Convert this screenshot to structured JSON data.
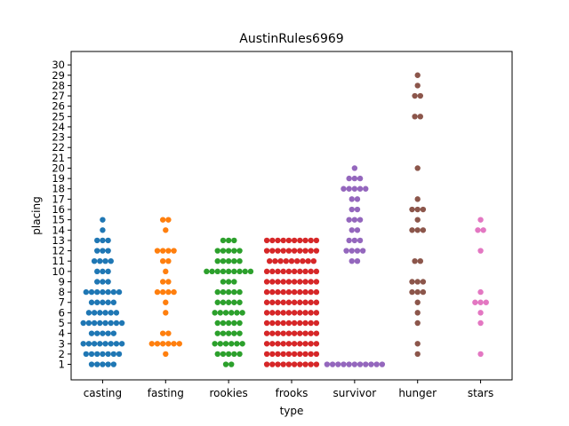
{
  "chart_data": {
    "type": "scatter",
    "subtype": "swarm",
    "title": "AustinRules6969",
    "xlabel": "type",
    "ylabel": "placing",
    "categories": [
      "casting",
      "fasting",
      "rookies",
      "frooks",
      "survivor",
      "hunger",
      "stars"
    ],
    "colors": [
      "#1f77b4",
      "#ff7f0e",
      "#2ca02c",
      "#d62728",
      "#9467bd",
      "#8c564b",
      "#e377c2"
    ],
    "y_ticks": [
      1,
      2,
      3,
      4,
      5,
      6,
      7,
      8,
      9,
      10,
      11,
      12,
      13,
      14,
      15,
      16,
      17,
      18,
      19,
      20,
      21,
      22,
      23,
      24,
      25,
      26,
      27,
      28,
      29,
      30
    ],
    "ylim": [
      -0.5,
      31.3
    ],
    "grid": false,
    "series": [
      {
        "category": "casting",
        "counts": {
          "1": 5,
          "2": 7,
          "3": 8,
          "4": 5,
          "5": 8,
          "6": 6,
          "7": 5,
          "8": 7,
          "9": 3,
          "10": 3,
          "11": 4,
          "12": 3,
          "13": 3,
          "14": 1,
          "15": 1
        }
      },
      {
        "category": "fasting",
        "counts": {
          "2": 1,
          "3": 6,
          "4": 2,
          "6": 1,
          "7": 1,
          "8": 4,
          "9": 2,
          "10": 1,
          "11": 2,
          "12": 4,
          "14": 1,
          "15": 2
        }
      },
      {
        "category": "rookies",
        "counts": {
          "1": 2,
          "2": 5,
          "3": 6,
          "4": 5,
          "5": 5,
          "6": 6,
          "7": 5,
          "8": 5,
          "9": 3,
          "10": 9,
          "11": 5,
          "12": 5,
          "13": 3
        }
      },
      {
        "category": "frooks",
        "counts": {
          "1": 10,
          "2": 10,
          "3": 10,
          "4": 10,
          "5": 10,
          "6": 10,
          "7": 10,
          "8": 10,
          "9": 10,
          "10": 10,
          "11": 9,
          "12": 10,
          "13": 10
        }
      },
      {
        "category": "survivor",
        "counts": {
          "1": 11,
          "11": 2,
          "12": 4,
          "13": 3,
          "14": 2,
          "15": 3,
          "16": 2,
          "17": 2,
          "18": 5,
          "19": 3,
          "20": 1
        }
      },
      {
        "category": "hunger",
        "counts": {
          "2": 1,
          "3": 1,
          "5": 1,
          "6": 1,
          "7": 1,
          "8": 3,
          "9": 3,
          "11": 2,
          "14": 3,
          "15": 1,
          "16": 3,
          "17": 1,
          "20": 1,
          "25": 2,
          "27": 2,
          "28": 1,
          "29": 1
        }
      },
      {
        "category": "stars",
        "counts": {
          "2": 1,
          "5": 1,
          "6": 1,
          "7": 3,
          "8": 1,
          "12": 1,
          "14": 2,
          "15": 1
        }
      }
    ]
  }
}
